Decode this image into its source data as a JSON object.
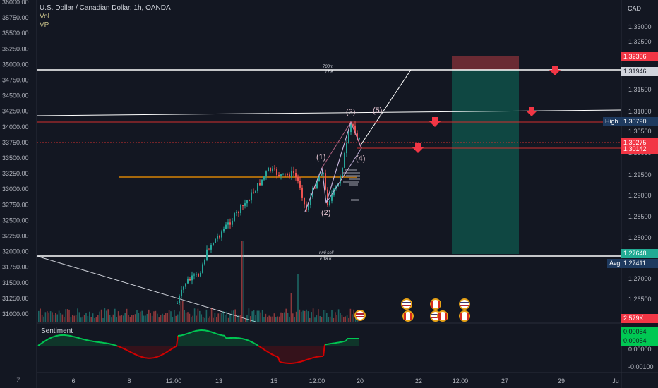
{
  "header": {
    "symbol_title": "U.S. Dollar / Canadian Dollar, 1h, OANDA",
    "indicators": [
      "Vol",
      "VP"
    ],
    "currency": "CAD"
  },
  "left_axis": {
    "ticks": [
      "36000.00",
      "35750.00",
      "35500.00",
      "35250.00",
      "35000.00",
      "34750.00",
      "34500.00",
      "34250.00",
      "34000.00",
      "33750.00",
      "33500.00",
      "33250.00",
      "33000.00",
      "32750.00",
      "32500.00",
      "32250.00",
      "32000.00",
      "31750.00",
      "31500.00",
      "31250.00",
      "31000.00"
    ]
  },
  "right_axis": {
    "ticks": [
      "1.33000",
      "1.32500",
      "1.31500",
      "1.31000",
      "1.30500",
      "1.30000",
      "1.29500",
      "1.29000",
      "1.28500",
      "1.28000",
      "1.27000",
      "1.26500"
    ],
    "price_labels": [
      {
        "name": "stop-price",
        "value": "1.32306",
        "color": "#f23645"
      },
      {
        "name": "resistance-price",
        "value": "1.31946",
        "color": "#787b86"
      },
      {
        "name": "high-price",
        "value": "1.30790",
        "color": "#1e3a5f"
      },
      {
        "name": "current-price",
        "value": "1.30275",
        "color": "#f23645"
      },
      {
        "name": "entry-price",
        "value": "1.30142",
        "color": "#f23645"
      },
      {
        "name": "target-price",
        "value": "1.27648",
        "color": "#22ab94"
      },
      {
        "name": "avg-price",
        "value": "1.27411",
        "color": "#1e3a5f"
      },
      {
        "name": "volume-value",
        "value": "2.579K",
        "color": "#f23645"
      }
    ],
    "high_label": "High",
    "avg_label": "Avg",
    "sentiment_labels": [
      {
        "name": "sentiment-value-1",
        "value": "0.00054",
        "color": "#00c853"
      },
      {
        "name": "sentiment-value-2",
        "value": "0.00054",
        "color": "#00c853"
      }
    ],
    "sentiment_ticks": [
      "0.00000",
      "-0.00100"
    ]
  },
  "time_axis": {
    "ticks": [
      "6",
      "8",
      "12:00",
      "13",
      "15",
      "12:00",
      "20",
      "22",
      "12:00",
      "27",
      "29",
      "Ju"
    ],
    "corner": "Z"
  },
  "annotations": {
    "waves": [
      "(1)",
      "(2)",
      "(3)",
      "(4)",
      "(5)"
    ],
    "top_line_label": "700m",
    "top_line_sub": "17.6",
    "bottom_line_label": "nmi sell",
    "bottom_line_sub": "c 18.6"
  },
  "sentiment": {
    "title": "Sentiment"
  },
  "colors": {
    "background": "#131722",
    "up": "#26a69a",
    "down": "#ef5350",
    "orange_line": "#ff9800"
  }
}
